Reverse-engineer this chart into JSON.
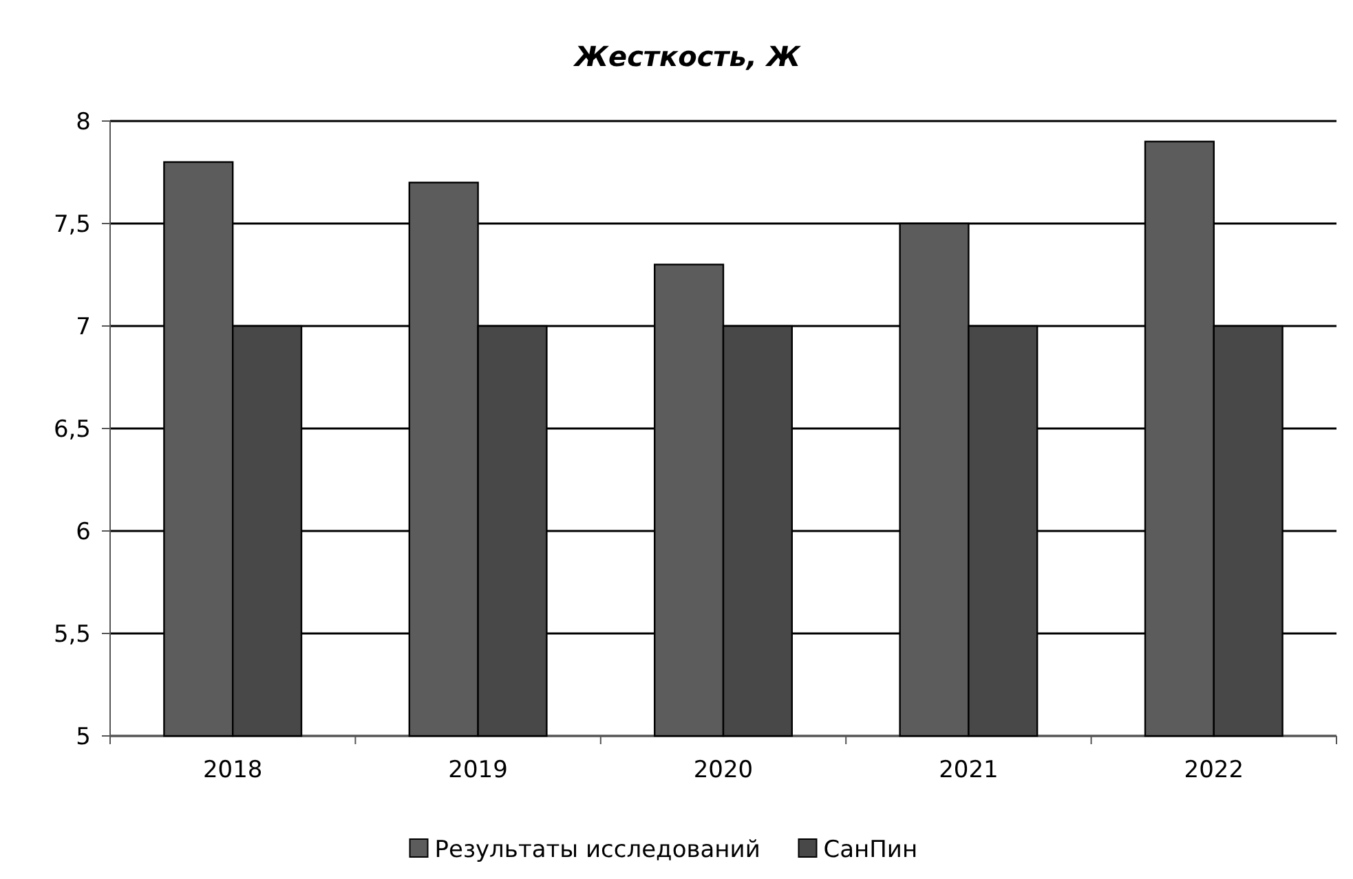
{
  "chart_data": {
    "type": "bar",
    "title": "Жесткость, Ж",
    "categories": [
      "2018",
      "2019",
      "2020",
      "2021",
      "2022"
    ],
    "series": [
      {
        "name": "Результаты исследований",
        "color": "#5c5c5c",
        "values": [
          7.8,
          7.7,
          7.3,
          7.5,
          7.9
        ]
      },
      {
        "name": "СанПин",
        "color": "#484848",
        "values": [
          7,
          7,
          7,
          7,
          7
        ]
      }
    ],
    "ylim": [
      5,
      8
    ],
    "yticks": [
      5,
      {
        "value": 5.5,
        "label": "5,5"
      },
      6,
      {
        "value": 6.5,
        "label": "6,5"
      },
      7,
      {
        "value": 7.5,
        "label": "7,5"
      },
      8
    ],
    "grid": "y",
    "legend": "bottom"
  }
}
